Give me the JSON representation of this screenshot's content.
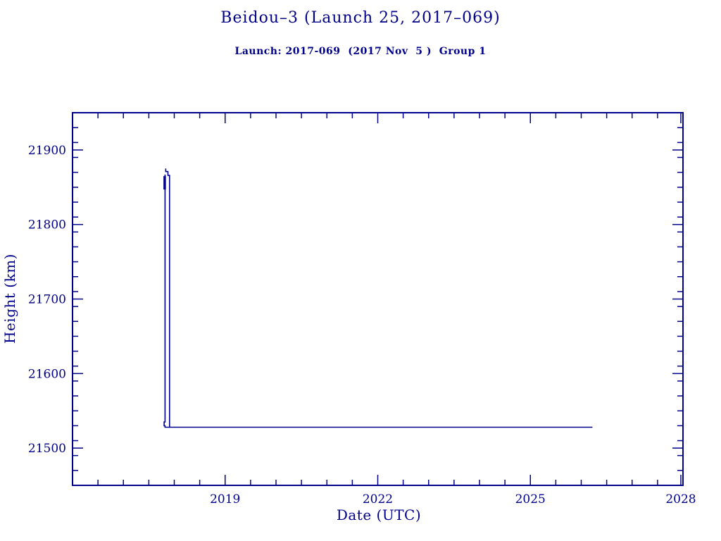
{
  "page": {
    "background": "#ffffff",
    "accent": "#00008B"
  },
  "chart_data": {
    "type": "line",
    "title": "Beidou–3 (Launch 25, 2017–069)",
    "subtitle": "Launch: 2017-069  (2017 Nov  5 )  Group 1",
    "xlabel": "Date (UTC)",
    "ylabel": "Height (km)",
    "xlim": [
      2016,
      2028
    ],
    "ylim": [
      21450,
      21950
    ],
    "x_major_ticks": [
      2019,
      2022,
      2025,
      2028
    ],
    "x_minor_step": 0.5,
    "y_major_ticks": [
      21500,
      21600,
      21700,
      21800,
      21900
    ],
    "y_minor_step": 20,
    "grid": false,
    "legend": false,
    "line_color": "#00008B",
    "series": [
      {
        "name": "height-main-trace",
        "width": 1.6,
        "points": [
          [
            2017.833,
            21875
          ],
          [
            2017.833,
            21871
          ],
          [
            2017.876,
            21871
          ],
          [
            2017.876,
            21866
          ],
          [
            2017.907,
            21866
          ],
          [
            2017.907,
            21528
          ],
          [
            2026.22,
            21528
          ]
        ]
      },
      {
        "name": "height-left-branch",
        "width": 1.6,
        "points": [
          [
            2017.818,
            21867
          ],
          [
            2017.818,
            21535
          ],
          [
            2017.801,
            21535
          ],
          [
            2017.801,
            21530
          ],
          [
            2017.818,
            21530
          ],
          [
            2017.818,
            21528
          ],
          [
            2017.907,
            21528
          ]
        ]
      },
      {
        "name": "height-dense-cluster",
        "width": 3.5,
        "points": [
          [
            2017.812,
            21865
          ],
          [
            2017.812,
            21847
          ]
        ]
      }
    ]
  }
}
